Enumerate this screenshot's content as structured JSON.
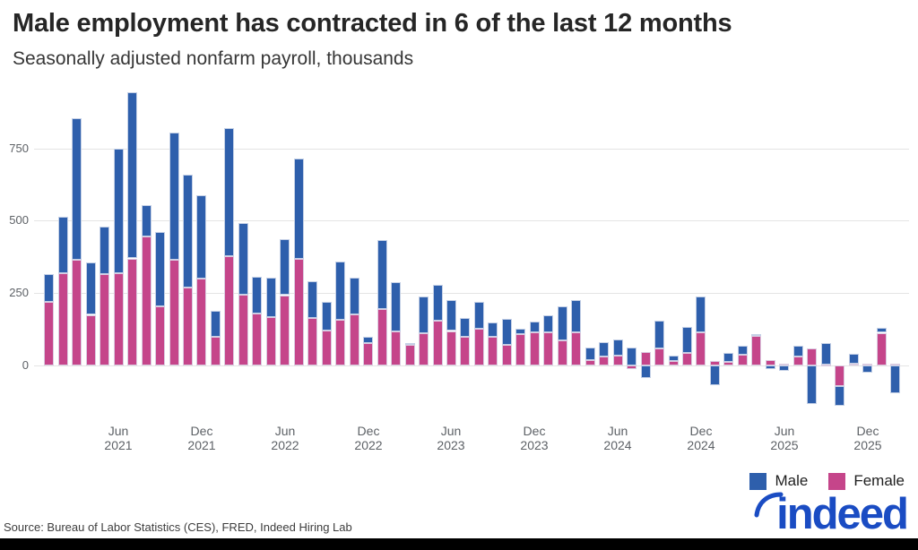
{
  "title": "Male employment has contracted in 6 of the last 12 months",
  "subtitle": "Seasonally adjusted nonfarm payroll, thousands",
  "source": "Source: Bureau of Labor Statistics (CES), FRED, Indeed Hiring Lab",
  "logo": {
    "text": "indeed"
  },
  "legend": {
    "male_label": "Male",
    "female_label": "Female"
  },
  "colors": {
    "male": "#2E5FAC",
    "female": "#C5458A",
    "grid": "#E4E4E4",
    "axis_text": "#5D6166",
    "logo_blue": "#1A4CC3",
    "footer": "#000000"
  },
  "chart_data": {
    "type": "bar",
    "stacked": true,
    "title": "Male employment has contracted in 6 of the last 12 months",
    "subtitle": "Seasonally adjusted nonfarm payroll, thousands",
    "xlabel": "",
    "ylabel": "Seasonally adjusted nonfarm payroll, thousands",
    "ylim": [
      -150,
      970
    ],
    "yticks": [
      0,
      250,
      500,
      750
    ],
    "grid": "horizontal",
    "legend_position": "bottom-right",
    "categories": [
      "Jan 2021",
      "Feb 2021",
      "Mar 2021",
      "Apr 2021",
      "May 2021",
      "Jun 2021",
      "Jul 2021",
      "Aug 2021",
      "Sep 2021",
      "Oct 2021",
      "Nov 2021",
      "Dec 2021",
      "Jan 2022",
      "Feb 2022",
      "Mar 2022",
      "Apr 2022",
      "May 2022",
      "Jun 2022",
      "Jul 2022",
      "Aug 2022",
      "Sep 2022",
      "Oct 2022",
      "Nov 2022",
      "Dec 2022",
      "Jan 2023",
      "Feb 2023",
      "Mar 2023",
      "Apr 2023",
      "May 2023",
      "Jun 2023",
      "Jul 2023",
      "Aug 2023",
      "Sep 2023",
      "Oct 2023",
      "Nov 2023",
      "Dec 2023",
      "Jan 2024",
      "Feb 2024",
      "Mar 2024",
      "Apr 2024",
      "May 2024",
      "Jun 2024",
      "Jul 2024",
      "Aug 2024",
      "Sep 2024",
      "Oct 2024",
      "Nov 2024",
      "Dec 2024",
      "Jan 2025",
      "Feb 2025",
      "Mar 2025",
      "Apr 2025",
      "May 2025",
      "Jun 2025",
      "Jul 2025",
      "Aug 2025",
      "Sep 2025",
      "Oct 2025",
      "Nov 2025",
      "Dec 2025",
      "Jan 2026",
      "Feb 2026"
    ],
    "series": [
      {
        "name": "Female",
        "values": [
          220,
          320,
          365,
          175,
          315,
          320,
          370,
          445,
          205,
          365,
          268,
          300,
          100,
          377,
          245,
          180,
          168,
          243,
          367,
          164,
          120,
          158,
          176,
          77,
          196,
          118,
          72,
          113,
          154,
          119,
          100,
          127,
          100,
          70,
          108,
          116,
          116,
          87,
          115,
          20,
          32,
          35,
          -13,
          48,
          60,
          15,
          44,
          115,
          17,
          12,
          38,
          102,
          20,
          7,
          31,
          59,
          4,
          -70,
          7,
          7,
          113,
          7
        ]
      },
      {
        "name": "Male",
        "values": [
          95,
          195,
          490,
          180,
          165,
          430,
          575,
          110,
          255,
          440,
          390,
          288,
          89,
          444,
          246,
          128,
          134,
          194,
          347,
          127,
          100,
          200,
          127,
          23,
          239,
          171,
          4,
          127,
          125,
          106,
          65,
          93,
          50,
          90,
          18,
          37,
          59,
          116,
          112,
          42,
          50,
          54,
          62,
          -42,
          95,
          20,
          89,
          122,
          -68,
          30,
          30,
          8,
          -12,
          -18,
          38,
          -133,
          73,
          -68,
          34,
          -26,
          18,
          -96
        ]
      }
    ],
    "x_ticks": [
      {
        "index": 5,
        "line1": "Jun",
        "line2": "2021"
      },
      {
        "index": 11,
        "line1": "Dec",
        "line2": "2021"
      },
      {
        "index": 17,
        "line1": "Jun",
        "line2": "2022"
      },
      {
        "index": 23,
        "line1": "Dec",
        "line2": "2022"
      },
      {
        "index": 29,
        "line1": "Jun",
        "line2": "2023"
      },
      {
        "index": 35,
        "line1": "Dec",
        "line2": "2023"
      },
      {
        "index": 41,
        "line1": "Jun",
        "line2": "2024"
      },
      {
        "index": 47,
        "line1": "Dec",
        "line2": "2024"
      },
      {
        "index": 53,
        "line1": "Jun",
        "line2": "2025"
      },
      {
        "index": 59,
        "line1": "Dec",
        "line2": "2025"
      }
    ]
  }
}
